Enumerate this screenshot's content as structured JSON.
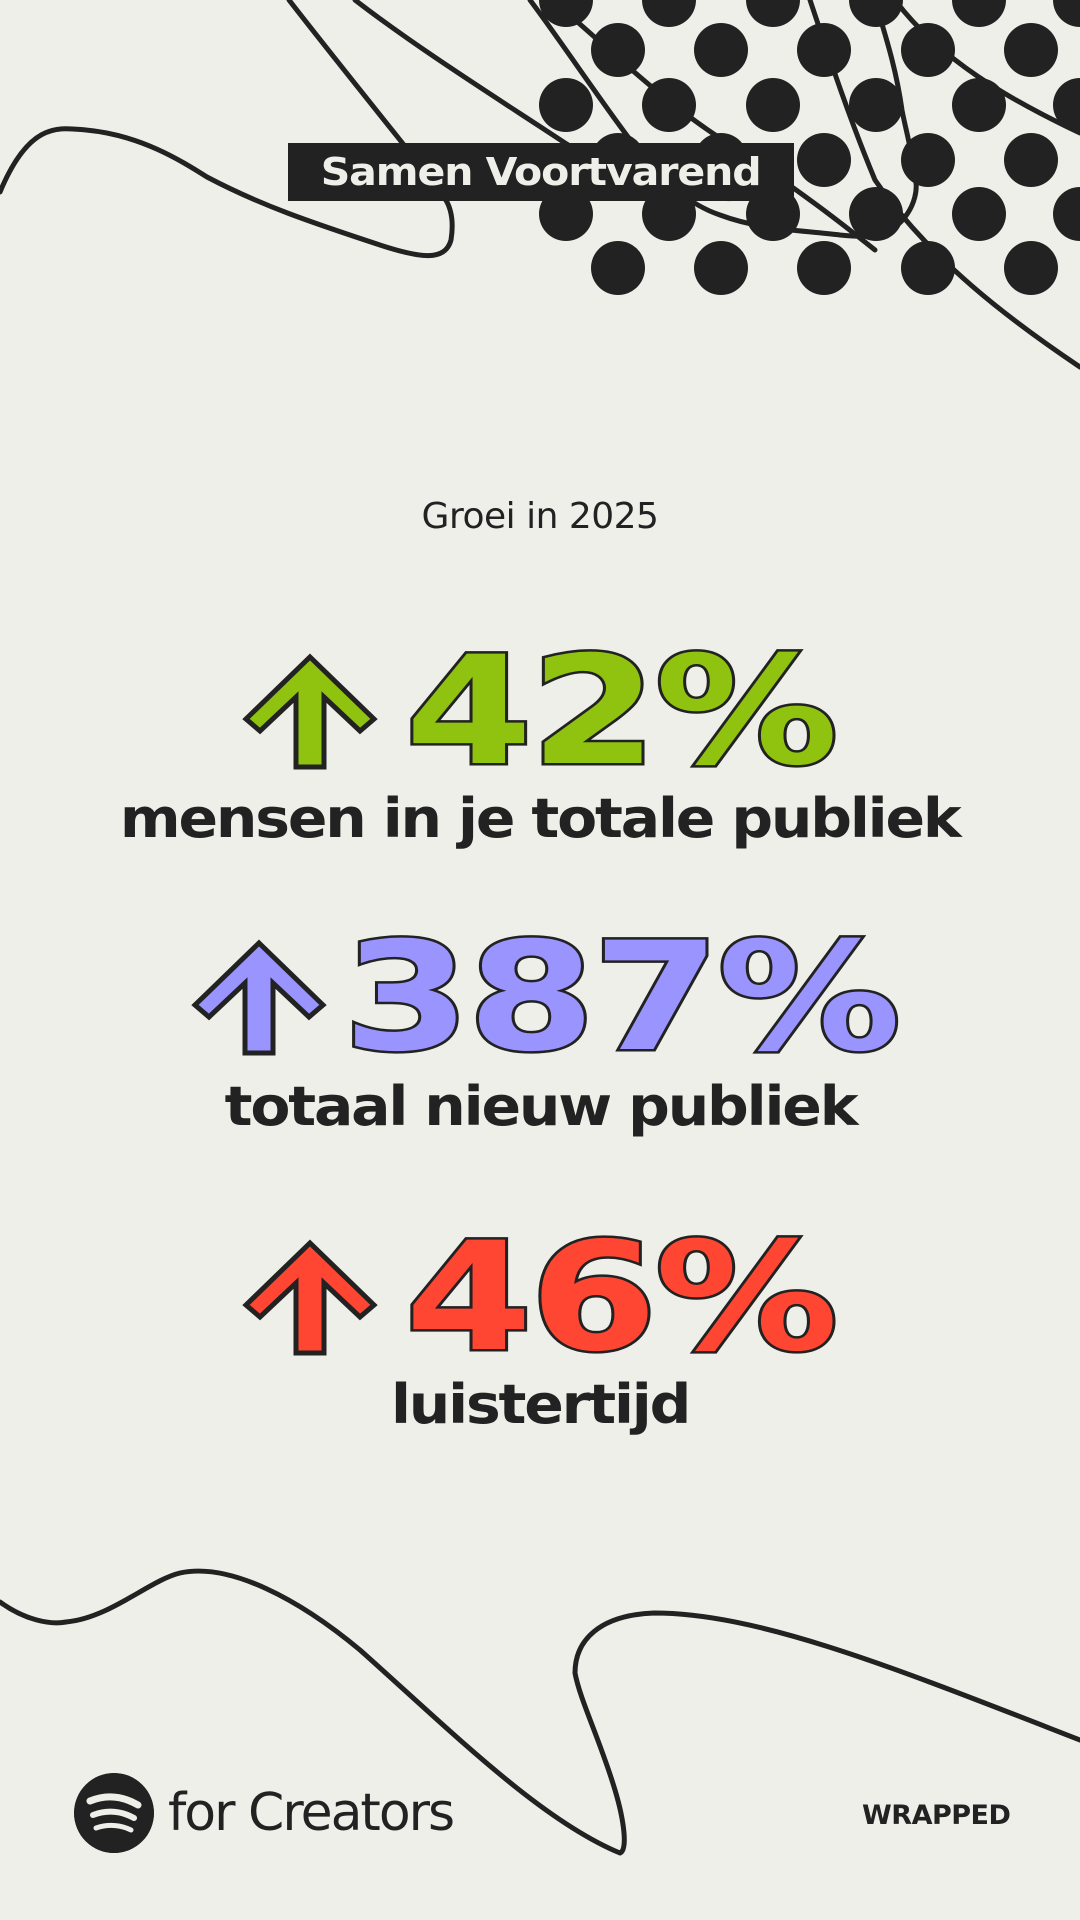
{
  "header": {
    "tag": "Samen Voortvarend"
  },
  "main": {
    "subtitle": "Groei in 2025",
    "stats": [
      {
        "value": "42%",
        "label": "mensen in je totale publiek",
        "color": "#8fc30f",
        "icon": "arrow-up-icon"
      },
      {
        "value": "387%",
        "label": "totaal nieuw publiek",
        "color": "#9a94ff",
        "icon": "arrow-up-icon"
      },
      {
        "value": "46%",
        "label": "luistertijd",
        "color": "#ff4632",
        "icon": "arrow-up-icon"
      }
    ]
  },
  "footer": {
    "brand": "for Creators",
    "brand_icon": "spotify-logo-icon",
    "wrapped": "WRAPPED"
  },
  "colors": {
    "background": "#efefea",
    "ink": "#222222"
  }
}
